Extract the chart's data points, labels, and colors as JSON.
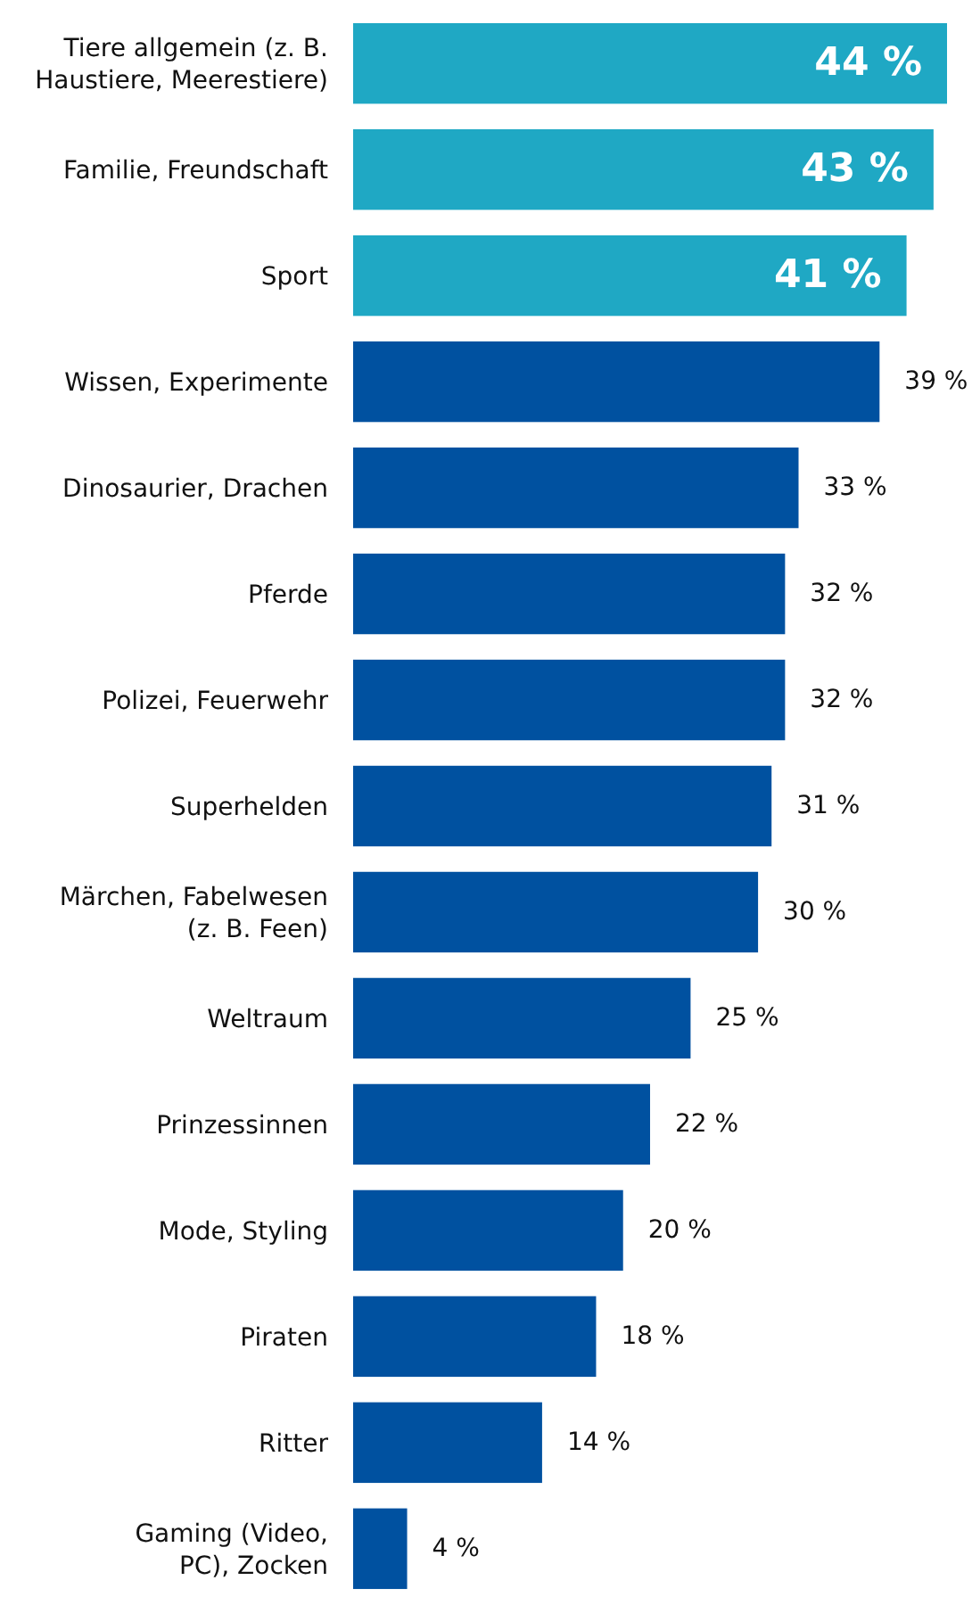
{
  "chart_data": {
    "type": "bar",
    "orientation": "horizontal",
    "relative": false,
    "categories": [
      "Tiere allgemein (z. B. Haustiere, Meerestiere)",
      "Familie, Freundschaft",
      "Sport",
      "Wissen, Experimente",
      "Dinosaurier, Drachen",
      "Pferde",
      "Polizei, Feuerwehr",
      "Superhelden",
      "Märchen, Fabelwesen (z. B. Feen)",
      "Weltraum",
      "Prinzessinnen",
      "Mode, Styling",
      "Piraten",
      "Ritter",
      "Gaming (Video, PC), Zocken"
    ],
    "values": [
      44,
      43,
      41,
      39,
      33,
      32,
      32,
      31,
      30,
      25,
      22,
      20,
      18,
      14,
      4
    ],
    "colors": [
      "#1fa8c4",
      "#1fa8c4",
      "#1fa8c4",
      "#0051a0",
      "#0051a0",
      "#0051a0",
      "#0051a0",
      "#0051a0",
      "#0051a0",
      "#0051a0",
      "#0051a0",
      "#0051a0",
      "#0051a0",
      "#0051a0",
      "#0051a0"
    ],
    "value_labels": [
      "44 %",
      "43 %",
      "41 %",
      "39 %",
      "33 %",
      "32 %",
      "32 %",
      "31 %",
      "30 %",
      "25 %",
      "22 %",
      "20 %",
      "18 %",
      "14 %",
      "4 %"
    ]
  }
}
